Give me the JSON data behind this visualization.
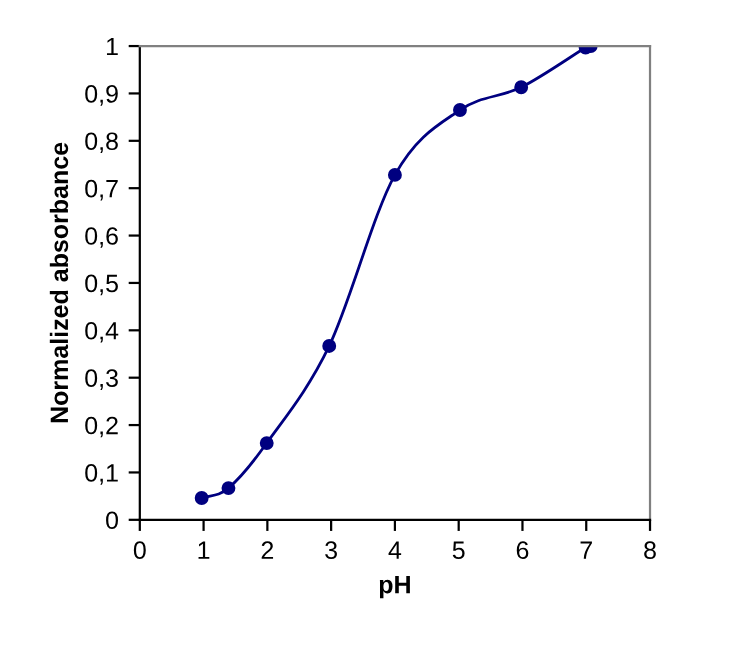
{
  "chart_data": {
    "type": "line",
    "xlabel": "pH",
    "ylabel": "Normalized absorbance",
    "x": [
      0.97,
      1.39,
      1.99,
      2.97,
      4.0,
      5.02,
      5.98,
      6.99,
      7.07
    ],
    "series": [
      {
        "color": "#000080",
        "values": [
          0.046,
          0.067,
          0.162,
          0.367,
          0.728,
          0.865,
          0.913,
          0.997,
          1.0
        ]
      }
    ],
    "marker": "circle",
    "line_style": "solid",
    "grid": false,
    "legend": false,
    "xlim": [
      0,
      8
    ],
    "xticks": [
      0,
      1,
      2,
      3,
      4,
      5,
      6,
      7,
      8
    ],
    "ylim": [
      0,
      1
    ],
    "yticks": [
      0,
      {
        "value": 0.1,
        "label": "0,1"
      },
      {
        "value": 0.2,
        "label": "0,2"
      },
      {
        "value": 0.3,
        "label": "0,3"
      },
      {
        "value": 0.4,
        "label": "0,4"
      },
      {
        "value": 0.5,
        "label": "0,5"
      },
      {
        "value": 0.6,
        "label": "0,6"
      },
      {
        "value": 0.7,
        "label": "0,7"
      },
      {
        "value": 0.8,
        "label": "0,8"
      },
      {
        "value": 0.9,
        "label": "0,9"
      },
      1
    ]
  }
}
